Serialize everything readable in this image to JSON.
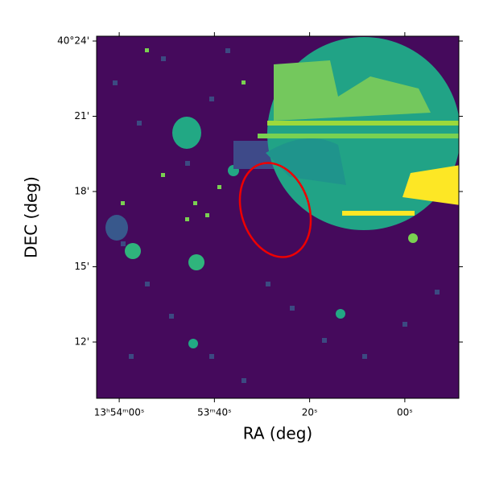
{
  "chart_data": {
    "type": "image",
    "xlabel": "RA (deg)",
    "ylabel": "DEC (deg)",
    "xlim": [
      208.5198,
      208.2027
    ],
    "ylim": [
      40.1626,
      40.4032
    ],
    "xticks": [
      {
        "value": 208.5,
        "label": "13ʰ54ᵐ00ˢ"
      },
      {
        "value": 208.41667,
        "label": "53ᵐ40ˢ"
      },
      {
        "value": 208.33333,
        "label": "20ˢ"
      },
      {
        "value": 208.25,
        "label": "00ˢ"
      }
    ],
    "yticks": [
      {
        "value": 40.4,
        "label": "40°24'"
      },
      {
        "value": 40.35,
        "label": "21'"
      },
      {
        "value": 40.3,
        "label": "18'"
      },
      {
        "value": 40.25,
        "label": "15'"
      },
      {
        "value": 40.2,
        "label": "12'"
      }
    ]
  }
}
